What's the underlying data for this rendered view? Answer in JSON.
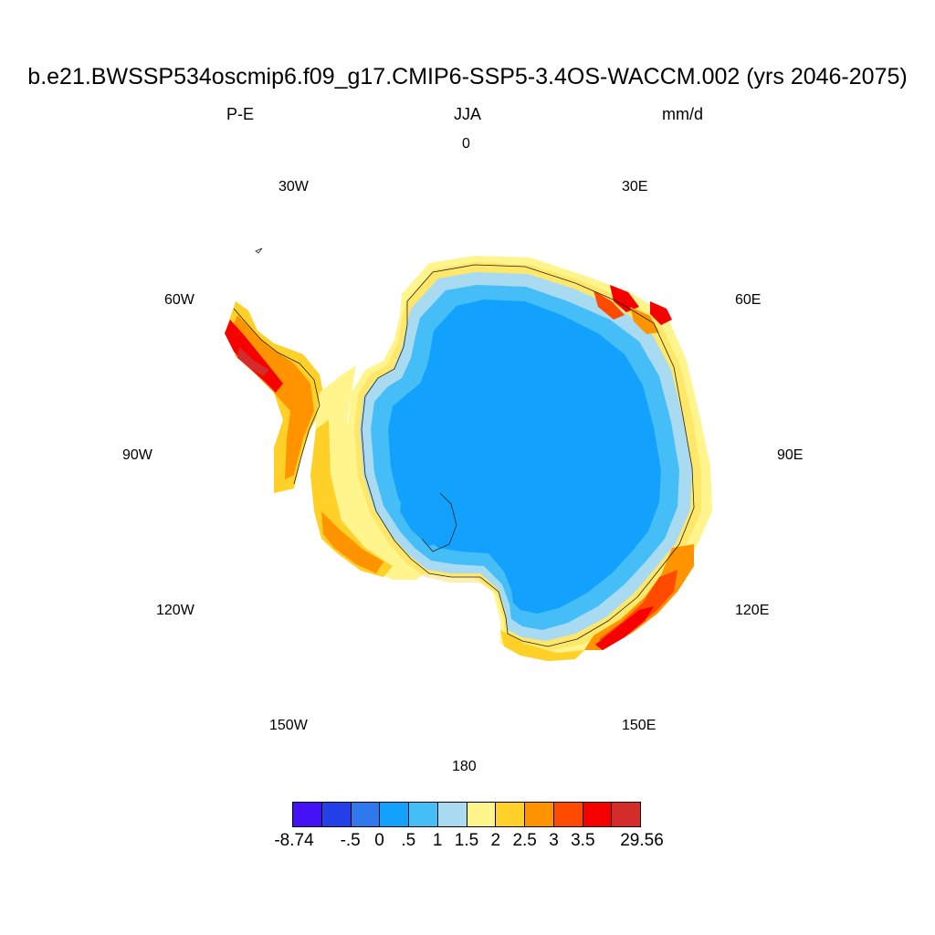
{
  "title": "b.e21.BWSSP534oscmip6.f09_g17.CMIP6-SSP5-3.4OS-WACCM.002 (yrs 2046-2075)",
  "subtitle_left": "P-E",
  "subtitle_center": "JJA",
  "subtitle_right": "mm/d",
  "longitude_labels": {
    "lon_0": "0",
    "lon_30e": "30E",
    "lon_60e": "60E",
    "lon_90e": "90E",
    "lon_120e": "120E",
    "lon_150e": "150E",
    "lon_180": "180",
    "lon_150w": "150W",
    "lon_120w": "120W",
    "lon_90w": "90W",
    "lon_60w": "60W",
    "lon_30w": "30W"
  },
  "colorbar": {
    "colors": [
      "#4512f5",
      "#2440e8",
      "#2f78ee",
      "#12a2fd",
      "#45bef7",
      "#a8daf2",
      "#fff58c",
      "#ffd028",
      "#ff9400",
      "#ff4a00",
      "#f70000",
      "#d42b2b"
    ],
    "labels": [
      "-8.74",
      "-.5",
      "0",
      ".5",
      "1",
      "1.5",
      "2",
      "2.5",
      "3",
      "3.5",
      "29.56"
    ]
  },
  "colors": {
    "interior": "#12a2fd",
    "ring1": "#45bef7",
    "ring2": "#a8daf2",
    "coast_yellow": "#fff58c",
    "coast_gold": "#ffd028",
    "coast_orange": "#ff9400",
    "coast_redorange": "#ff4a00",
    "coast_red": "#f70000",
    "coast_darkred": "#d42b2b"
  }
}
